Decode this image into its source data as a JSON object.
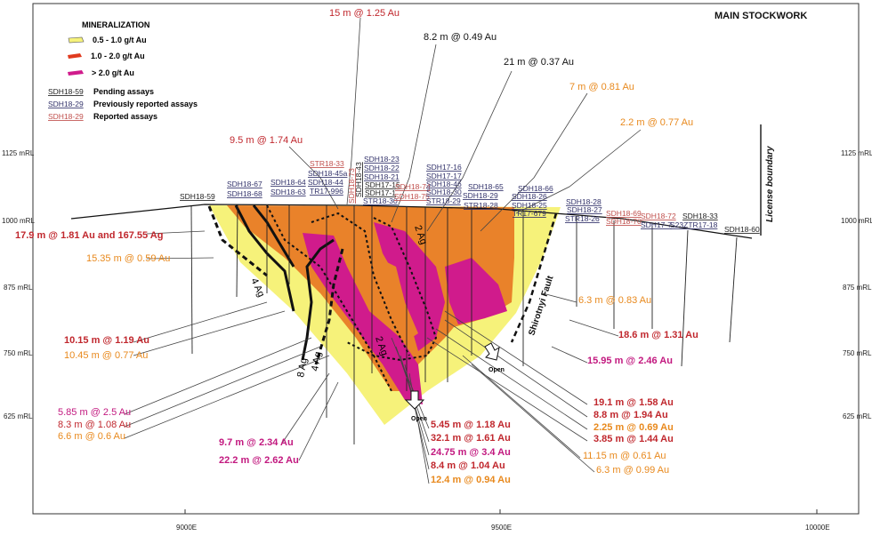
{
  "title": "MAIN STOCKWORK",
  "legend": {
    "heading": "MINERALIZATION",
    "grades": [
      {
        "label": "0.5 - 1.0 g/t Au",
        "color": "#f6f27a"
      },
      {
        "label": "1.0 - 2.0 g/t Au",
        "color": "#e03a1e"
      },
      {
        "label": "> 2.0 g/t Au",
        "color": "#d01b8c"
      }
    ],
    "status": [
      {
        "hole": "SDH18-59",
        "label": "Pending assays"
      },
      {
        "hole": "SDH18-29",
        "label": "Previously reported assays"
      },
      {
        "hole": "SDH18-29",
        "label": "Reported assays"
      }
    ]
  },
  "elevations": [
    "1125 mRL",
    "1000 mRL",
    "875 mRL",
    "750 mRL",
    "625 mRL"
  ],
  "eastings": [
    "9000E",
    "9500E",
    "10000E"
  ],
  "annotations": {
    "license_boundary": "License boundary",
    "fault": "Shirotnyi Fault",
    "open1": "Open",
    "open2": "Open",
    "ag4a": "4 Ag",
    "ag8": "8 Ag",
    "ag4b": "4 Ag",
    "ag2a": "2 Ag",
    "ag2b": "2 Ag"
  },
  "holes": {
    "h1": "SDH18-59",
    "h2": [
      "SDH18-67",
      "SDH18-68"
    ],
    "h3": [
      "SDH18-64",
      "SDH18-63"
    ],
    "h4": [
      "STR18-33",
      "SDH18-45a",
      "SDH18-44",
      "TR17-996"
    ],
    "h5": "SDH18-73",
    "h6": "SDH18-43",
    "h7": [
      "SDH18-23",
      "SDH18-22",
      "SDH18-21",
      "SDH17-15",
      "SDH17-1",
      "STR18-30"
    ],
    "h8": [
      "SDH18-74",
      "SDH18-75"
    ],
    "h9": [
      "SDH17-16",
      "SDH17-17",
      "SDH18-46",
      "SDH18-30",
      "STR18-29"
    ],
    "h10": [
      "SDH18-65",
      "SDH18-29",
      "STR18-28"
    ],
    "h11": [
      "SDH18-66",
      "SDH18-26",
      "SDH18-25",
      "TR17-679"
    ],
    "h12": [
      "SDH18-28",
      "SDH18-27",
      "STR18-26"
    ],
    "h13": [
      "SDH18-69",
      "SDH18-70"
    ],
    "h14": [
      "SDH18-72",
      "SDH17-7"
    ],
    "h15": [
      "SDH18-33",
      "S23ZTR17-18"
    ],
    "h16": "SDH18-60"
  },
  "intercepts": {
    "top": [
      "15 m @ 1.25 Au",
      "8.2 m @ 0.49 Au",
      "21 m @ 0.37 Au",
      "7 m @ 0.81 Au",
      "2.2 m @ 0.77 Au",
      "9.5 m @ 1.74 Au"
    ],
    "left": [
      "17.9 m @ 1.81 Au and 167.55 Ag",
      "15.35 m @ 0.59 Au",
      "10.15 m @ 1.19 Au",
      "10.45 m @ 0.77 Au",
      "5.85 m @ 2.5 Au",
      "8.3 m @ 1.08 Au",
      "6.6 m @ 0.6 Au",
      "9.7 m @ 2.34 Au",
      "22.2 m @ 2.62 Au"
    ],
    "center": [
      "5.45 m @ 1.18 Au",
      "32.1 m @ 1.61 Au",
      "24.75 m @ 3.4 Au",
      "8.4 m @ 1.04 Au",
      "12.4 m @ 0.94 Au"
    ],
    "right": [
      "6.3 m @ 0.83 Au",
      "18.6 m @ 1.31 Au",
      "15.95 m @ 2.46 Au",
      "19.1 m @ 1.58 Au",
      "8.8 m @ 1.94 Au",
      "2.25 m @ 0.69 Au",
      "3.85 m @ 1.44 Au",
      "11.15 m @ 0.61 Au",
      "6.3 m @ 0.99 Au"
    ]
  }
}
